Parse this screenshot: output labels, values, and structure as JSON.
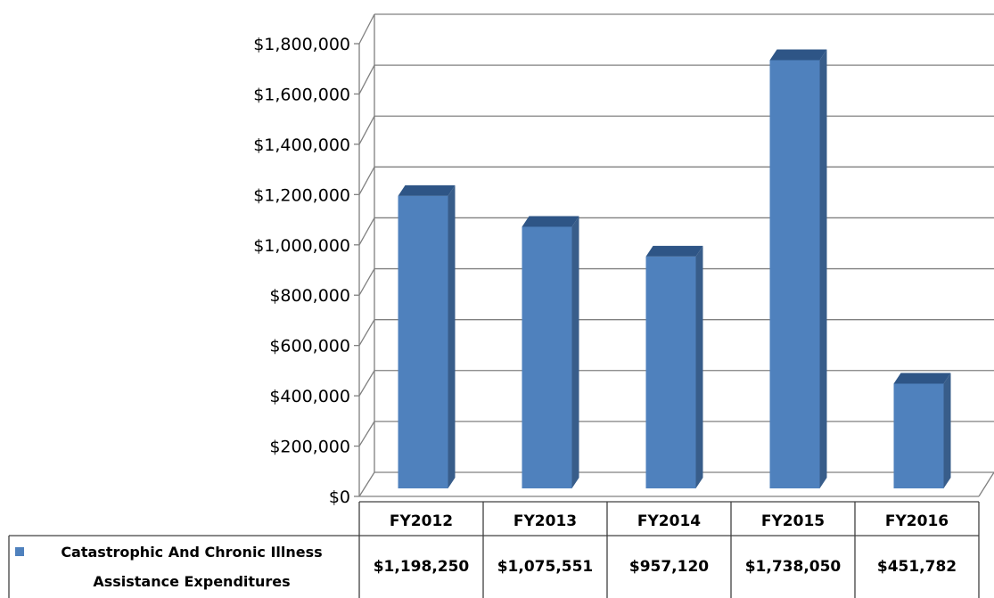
{
  "chart_data": {
    "type": "bar",
    "style": "3d-column-with-data-table",
    "categories": [
      "FY2012",
      "FY2013",
      "FY2014",
      "FY2015",
      "FY2016"
    ],
    "series": [
      {
        "name": "Catastrophic And Chronic Illness Assistance Expenditures",
        "name_lines": [
          "Catastrophic And Chronic Illness",
          "Assistance Expenditures"
        ],
        "values": [
          1198250,
          1075551,
          957120,
          1738050,
          451782
        ],
        "value_labels": [
          "$1,198,250",
          "$1,075,551",
          "$957,120",
          "$1,738,050",
          "$451,782"
        ],
        "color": "#4F81BD"
      }
    ],
    "yticks": [
      0,
      200000,
      400000,
      600000,
      800000,
      1000000,
      1200000,
      1400000,
      1600000,
      1800000
    ],
    "ytick_labels": [
      "$0",
      "$200,000",
      "$400,000",
      "$600,000",
      "$800,000",
      "$1,000,000",
      "$1,200,000",
      "$1,400,000",
      "$1,600,000",
      "$1,800,000"
    ],
    "ylim": [
      0,
      1800000
    ],
    "title": "",
    "xlabel": "",
    "ylabel": "",
    "grid": true,
    "legend": "data-table",
    "colors": {
      "bar_front": "#4F81BD",
      "bar_side": "#385D8A",
      "bar_top": "#2E5586",
      "grid": "#808080"
    }
  }
}
